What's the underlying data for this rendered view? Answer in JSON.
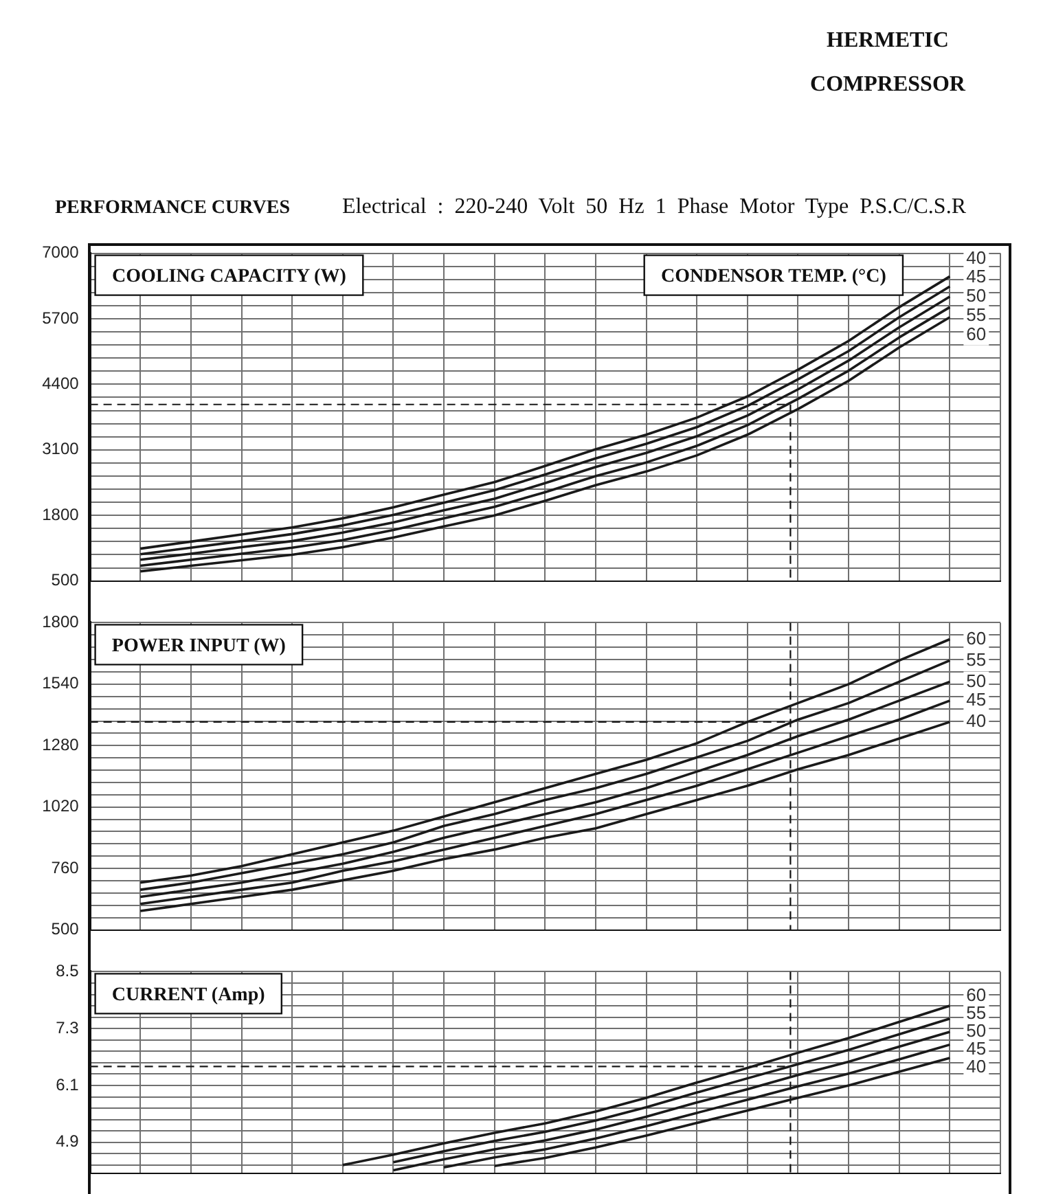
{
  "chart_data": [
    {
      "type": "line",
      "title": "PERFORMANCE CURVES",
      "subtitle": "Electrical : 220-240 Volt 50 Hz 1 Phase Motor Type P.S.C/C.S.R",
      "annotations": [
        "HERMETIC COMPRESSOR"
      ],
      "ylabel": "COOLING CAPACITY (W)",
      "legend_title": "CONDENSOR TEMP. (°C)",
      "categories": [
        null,
        null,
        null,
        null,
        null,
        null,
        null,
        null,
        null,
        null,
        null,
        null,
        null,
        null,
        null,
        null,
        null,
        null,
        null
      ],
      "series": [
        {
          "name": "40",
          "color": "#1a1a1a",
          "values": [
            null,
            1140,
            1280,
            1420,
            1560,
            1740,
            1960,
            2210,
            2460,
            2780,
            3110,
            3400,
            3740,
            4160,
            4690,
            5260,
            5930,
            6540,
            null
          ]
        },
        {
          "name": "45",
          "color": "#1a1a1a",
          "values": [
            null,
            1030,
            1160,
            1290,
            1430,
            1600,
            1810,
            2050,
            2300,
            2610,
            2930,
            3220,
            3550,
            3970,
            4500,
            5060,
            5730,
            6340,
            null
          ]
        },
        {
          "name": "50",
          "color": "#1a1a1a",
          "values": [
            null,
            920,
            1040,
            1170,
            1290,
            1460,
            1660,
            1900,
            2130,
            2440,
            2760,
            3040,
            3370,
            3780,
            4300,
            4870,
            5530,
            6140,
            null
          ]
        },
        {
          "name": "55",
          "color": "#1a1a1a",
          "values": [
            null,
            800,
            920,
            1040,
            1160,
            1310,
            1510,
            1740,
            1970,
            2260,
            2580,
            2850,
            3180,
            3590,
            4110,
            4670,
            5330,
            5930,
            null
          ]
        },
        {
          "name": "60",
          "color": "#1a1a1a",
          "values": [
            null,
            690,
            800,
            910,
            1020,
            1170,
            1360,
            1580,
            1800,
            2090,
            2400,
            2670,
            2990,
            3400,
            3910,
            4470,
            5130,
            5730,
            null
          ]
        }
      ],
      "ylim": [
        500,
        7000
      ],
      "yticks": [
        500,
        {
          "value": 760,
          "label": null
        },
        {
          "value": 1020,
          "label": null
        },
        {
          "value": 1280,
          "label": null
        },
        {
          "value": 1540,
          "label": null
        },
        1800,
        {
          "value": 2060,
          "label": null
        },
        {
          "value": 2320,
          "label": null
        },
        {
          "value": 2580,
          "label": null
        },
        {
          "value": 2840,
          "label": null
        },
        3100,
        {
          "value": 3360,
          "label": null
        },
        {
          "value": 3620,
          "label": null
        },
        {
          "value": 3880,
          "label": null
        },
        {
          "value": 4140,
          "label": null
        },
        4400,
        {
          "value": 4660,
          "label": null
        },
        {
          "value": 4920,
          "label": null
        },
        {
          "value": 5180,
          "label": null
        },
        {
          "value": 5440,
          "label": null
        },
        5700,
        {
          "value": 5960,
          "label": null
        },
        {
          "value": 6220,
          "label": null
        },
        {
          "value": 6480,
          "label": null
        },
        {
          "value": 6740,
          "label": null
        },
        7000
      ],
      "grid": true,
      "tick_labels": "y",
      "ref_lines": [
        {
          "axis": "y",
          "value": 4000,
          "line_style": "dashed",
          "color": "#1a1a1a"
        }
      ]
    },
    {
      "type": "line",
      "ylabel": "POWER INPUT (W)",
      "categories": [
        null,
        null,
        null,
        null,
        null,
        null,
        null,
        null,
        null,
        null,
        null,
        null,
        null,
        null,
        null,
        null,
        null,
        null,
        null
      ],
      "series": [
        {
          "name": "40",
          "color": "#1a1a1a",
          "values": [
            null,
            580,
            610,
            640,
            670,
            710,
            750,
            800,
            840,
            890,
            930,
            990,
            1050,
            1110,
            1180,
            1240,
            1310,
            1380,
            null
          ]
        },
        {
          "name": "45",
          "color": "#1a1a1a",
          "values": [
            null,
            610,
            640,
            670,
            700,
            750,
            790,
            840,
            890,
            940,
            990,
            1050,
            1110,
            1180,
            1250,
            1320,
            1390,
            1470,
            null
          ]
        },
        {
          "name": "50",
          "color": "#1a1a1a",
          "values": [
            null,
            640,
            670,
            700,
            740,
            780,
            830,
            890,
            940,
            990,
            1040,
            1100,
            1170,
            1240,
            1320,
            1390,
            1470,
            1550,
            null
          ]
        },
        {
          "name": "55",
          "color": "#1a1a1a",
          "values": [
            null,
            670,
            700,
            740,
            780,
            820,
            870,
            940,
            990,
            1050,
            1100,
            1160,
            1230,
            1300,
            1390,
            1460,
            1550,
            1640,
            null
          ]
        },
        {
          "name": "60",
          "color": "#1a1a1a",
          "values": [
            null,
            700,
            730,
            770,
            820,
            870,
            920,
            980,
            1040,
            1100,
            1160,
            1220,
            1290,
            1380,
            1460,
            1540,
            1640,
            1730,
            null
          ]
        }
      ],
      "ylim": [
        500,
        1800
      ],
      "yticks": [
        500,
        {
          "value": 552,
          "label": null
        },
        {
          "value": 604,
          "label": null
        },
        {
          "value": 656,
          "label": null
        },
        {
          "value": 708,
          "label": null
        },
        760,
        {
          "value": 812,
          "label": null
        },
        {
          "value": 864,
          "label": null
        },
        {
          "value": 916,
          "label": null
        },
        {
          "value": 968,
          "label": null
        },
        1020,
        {
          "value": 1072,
          "label": null
        },
        {
          "value": 1124,
          "label": null
        },
        {
          "value": 1176,
          "label": null
        },
        {
          "value": 1228,
          "label": null
        },
        1280,
        {
          "value": 1332,
          "label": null
        },
        {
          "value": 1384,
          "label": null
        },
        {
          "value": 1436,
          "label": null
        },
        {
          "value": 1488,
          "label": null
        },
        1540,
        {
          "value": 1592,
          "label": null
        },
        {
          "value": 1644,
          "label": null
        },
        {
          "value": 1696,
          "label": null
        },
        {
          "value": 1748,
          "label": null
        },
        1800
      ],
      "grid": true,
      "tick_labels": "y",
      "ref_lines": [
        {
          "axis": "y",
          "value": 1380,
          "line_style": "dashed",
          "color": "#1a1a1a"
        }
      ]
    },
    {
      "type": "line",
      "ylabel": "CURRENT (Amp)",
      "categories": [
        null,
        null,
        null,
        null,
        null,
        null,
        null,
        null,
        null,
        null,
        null,
        null,
        null,
        null,
        null,
        null,
        null,
        null,
        null
      ],
      "series": [
        {
          "name": "40",
          "color": "#1a1a1a",
          "values": [
            null,
            null,
            null,
            null,
            null,
            null,
            null,
            null,
            4.4,
            4.57,
            4.79,
            5.04,
            5.31,
            5.57,
            5.84,
            6.1,
            6.39,
            6.68,
            null
          ]
        },
        {
          "name": "45",
          "color": "#1a1a1a",
          "values": [
            null,
            null,
            null,
            null,
            null,
            null,
            null,
            4.37,
            4.58,
            4.75,
            4.98,
            5.24,
            5.52,
            5.8,
            6.08,
            6.35,
            6.65,
            6.96,
            null
          ]
        },
        {
          "name": "50",
          "color": "#1a1a1a",
          "values": [
            null,
            null,
            null,
            null,
            null,
            null,
            4.31,
            4.54,
            4.75,
            4.94,
            5.17,
            5.44,
            5.74,
            6.02,
            6.32,
            6.6,
            6.92,
            7.23,
            null
          ]
        },
        {
          "name": "55",
          "color": "#1a1a1a",
          "values": [
            null,
            null,
            null,
            null,
            null,
            null,
            4.48,
            4.71,
            4.93,
            5.12,
            5.36,
            5.64,
            5.95,
            6.25,
            6.55,
            6.85,
            7.18,
            7.51,
            null
          ]
        },
        {
          "name": "60",
          "color": "#1a1a1a",
          "values": [
            null,
            null,
            null,
            null,
            null,
            4.42,
            4.64,
            4.88,
            5.1,
            5.3,
            5.55,
            5.84,
            6.16,
            6.47,
            6.79,
            7.1,
            7.44,
            7.78,
            null
          ]
        }
      ],
      "ylim": [
        4.25,
        8.5
      ],
      "yticks": [
        {
          "value": 4.42,
          "label": null
        },
        {
          "value": 4.66,
          "label": null
        },
        4.9,
        {
          "value": 5.14,
          "label": null
        },
        {
          "value": 5.38,
          "label": null
        },
        {
          "value": 5.62,
          "label": null
        },
        {
          "value": 5.86,
          "label": null
        },
        6.1,
        {
          "value": 6.34,
          "label": null
        },
        {
          "value": 6.58,
          "label": null
        },
        {
          "value": 6.82,
          "label": null
        },
        {
          "value": 7.06,
          "label": null
        },
        7.3,
        {
          "value": 7.54,
          "label": null
        },
        {
          "value": 7.78,
          "label": null
        },
        {
          "value": 8.02,
          "label": null
        },
        {
          "value": 8.26,
          "label": null
        },
        8.5
      ],
      "grid": true,
      "tick_labels": "y",
      "ref_lines": [
        {
          "axis": "y",
          "value": 6.5,
          "line_style": "dashed",
          "color": "#1a1a1a"
        }
      ]
    }
  ]
}
